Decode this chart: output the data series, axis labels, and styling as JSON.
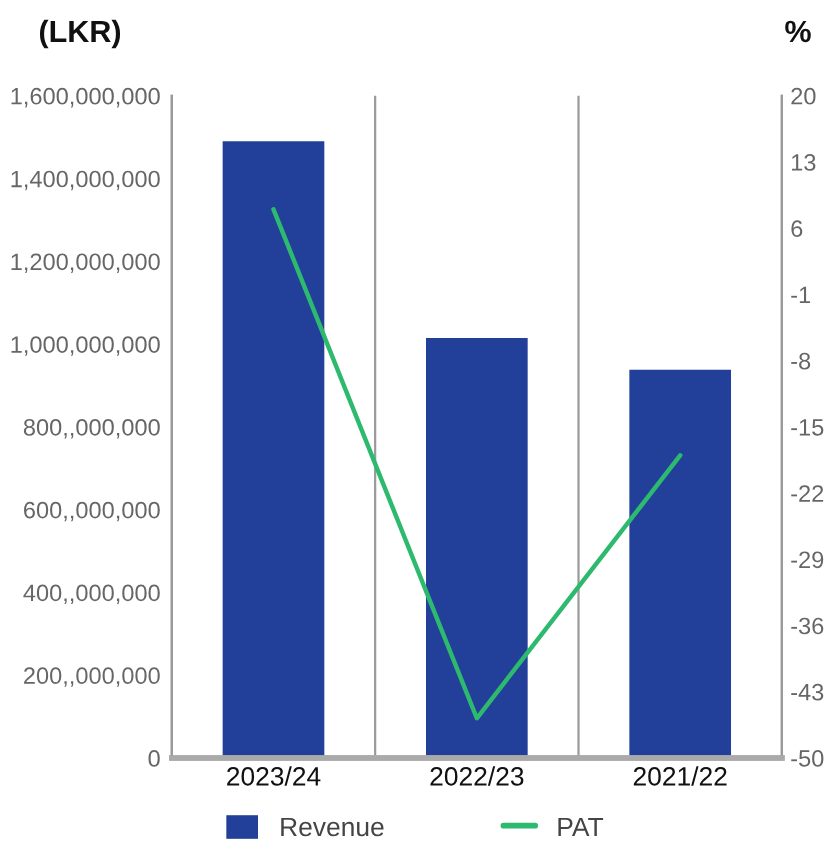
{
  "chart_data": {
    "type": "bar",
    "ylabel": "(LKR)",
    "y2label": "%",
    "categories": [
      "2023/24",
      "2022/23",
      "2021/22"
    ],
    "series": [
      {
        "name": "Revenue",
        "color": "#22409a",
        "values": [
          1490000000,
          1015000000,
          938000000
        ]
      },
      {
        "name": "PAT",
        "type": "line",
        "axis": "y2",
        "color": "#2dba6e",
        "values": [
          8,
          -45.8,
          -18
        ]
      }
    ],
    "ylim": [
      0,
      1600000000
    ],
    "yticks": [
      0,
      {
        "value": 200000000,
        "label": "200,,000,000"
      },
      {
        "value": 400000000,
        "label": "400,,000,000"
      },
      {
        "value": 600000000,
        "label": "600,,000,000"
      },
      {
        "value": 800000000,
        "label": "800,,000,000"
      },
      {
        "value": 1000000000,
        "label": "1,000,000,000"
      },
      {
        "value": 1200000000,
        "label": "1,200,000,000"
      },
      {
        "value": 1400000000,
        "label": "1,400,000,000"
      },
      {
        "value": 1600000000,
        "label": "1,600,000,000"
      }
    ],
    "y2lim": [
      -50,
      20
    ],
    "y2ticks": [
      -50,
      -43,
      -36,
      -29,
      -22,
      -15,
      -8,
      -1,
      6,
      13,
      20
    ],
    "grid": "x",
    "legend": "bottom"
  }
}
